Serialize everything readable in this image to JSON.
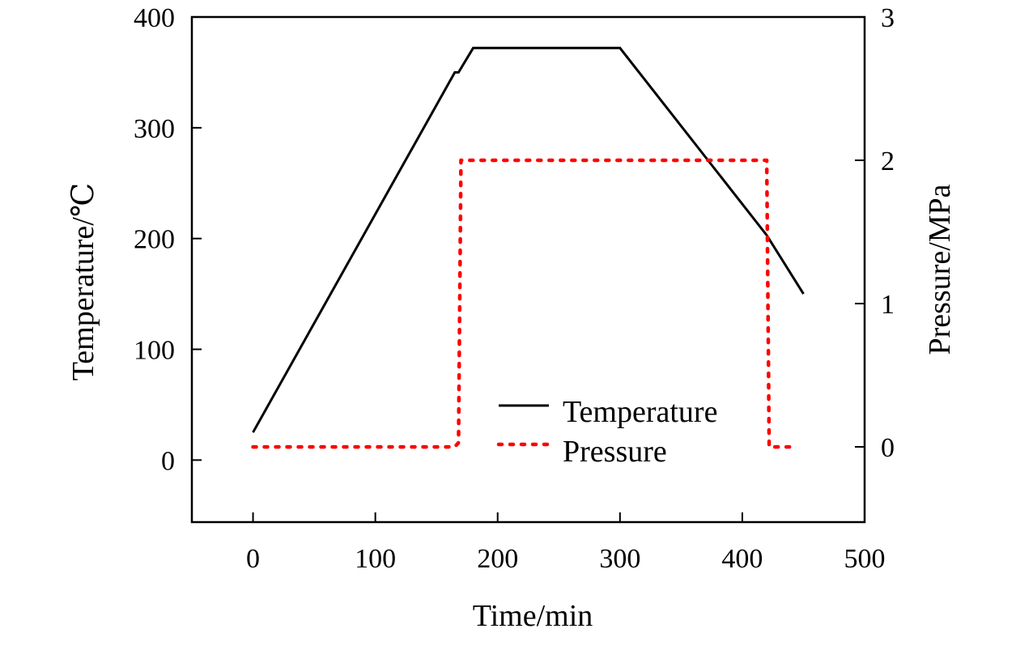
{
  "chart_data": {
    "type": "line",
    "title": "",
    "xlabel": "Time/min",
    "ylabel": "Temperature/℃",
    "y2label": "Pressure/MPa",
    "xlim": [
      -50,
      500
    ],
    "ylim": [
      -56,
      400
    ],
    "y2lim": [
      -0.525,
      3
    ],
    "xticks": [
      0,
      100,
      200,
      300,
      400,
      500
    ],
    "yticks": [
      0,
      100,
      200,
      300,
      400
    ],
    "y2ticks": [
      0,
      1,
      2,
      3
    ],
    "grid": false,
    "legend_position": "lower-middle",
    "series": [
      {
        "name": "Temperature",
        "axis": "left",
        "color": "#000000",
        "style": "solid",
        "x": [
          0,
          165,
          168,
          180,
          300,
          420,
          450
        ],
        "y": [
          25,
          350,
          350,
          372,
          372,
          203,
          150
        ]
      },
      {
        "name": "Pressure",
        "axis": "right",
        "color": "#ff0000",
        "style": "dotted",
        "x": [
          0,
          165,
          168,
          170,
          420,
          422,
          443
        ],
        "y": [
          0,
          0,
          0.03,
          2,
          2,
          0,
          0
        ]
      }
    ]
  }
}
